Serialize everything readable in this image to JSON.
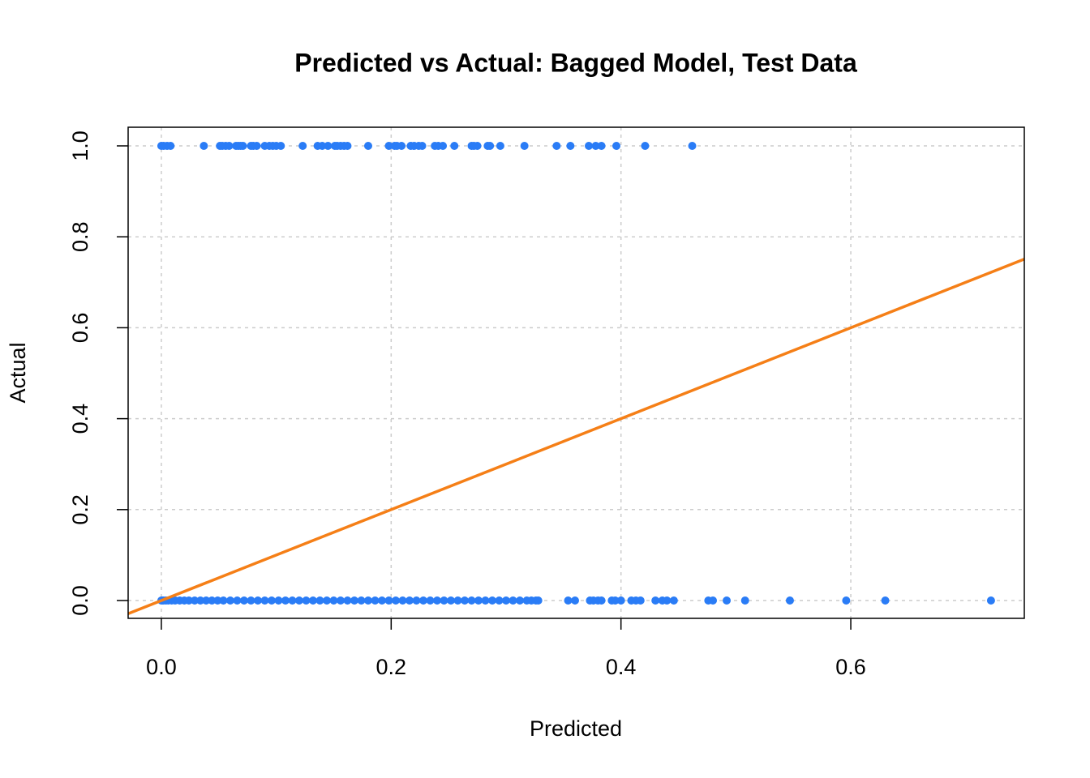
{
  "chart_data": {
    "type": "scatter",
    "title": "Predicted vs Actual: Bagged Model, Test Data",
    "x_label": "Predicted",
    "y_label": "Actual",
    "xlim": [
      -0.0289,
      0.751
    ],
    "ylim": [
      -0.0392,
      1.041
    ],
    "xticks": [
      {
        "value": 0,
        "label": "0.0"
      },
      0.2,
      0.4,
      0.6
    ],
    "yticks": [
      {
        "value": 0,
        "label": "0.0"
      },
      0.2,
      0.4,
      0.6,
      0.8,
      {
        "value": 1,
        "label": "1.0"
      }
    ],
    "grid": true,
    "reference_line": {
      "slope": 1,
      "intercept": 0,
      "color": "#f57f17"
    },
    "series": [
      {
        "color": "#2a7cf6",
        "x": [
          0.0,
          0.002,
          0.005,
          0.008,
          0.037,
          0.051,
          0.053,
          0.056,
          0.059,
          0.065,
          0.067,
          0.069,
          0.071,
          0.078,
          0.08,
          0.083,
          0.09,
          0.094,
          0.097,
          0.1,
          0.104,
          0.123,
          0.136,
          0.14,
          0.145,
          0.151,
          0.153,
          0.156,
          0.159,
          0.162,
          0.18,
          0.198,
          0.203,
          0.205,
          0.209,
          0.217,
          0.22,
          0.224,
          0.227,
          0.238,
          0.241,
          0.245,
          0.255,
          0.27,
          0.272,
          0.275,
          0.284,
          0.286,
          0.295,
          0.316,
          0.344,
          0.356,
          0.372,
          0.378,
          0.383,
          0.396,
          0.421,
          0.462
        ],
        "values": [
          1,
          1,
          1,
          1,
          1,
          1,
          1,
          1,
          1,
          1,
          1,
          1,
          1,
          1,
          1,
          1,
          1,
          1,
          1,
          1,
          1,
          1,
          1,
          1,
          1,
          1,
          1,
          1,
          1,
          1,
          1,
          1,
          1,
          1,
          1,
          1,
          1,
          1,
          1,
          1,
          1,
          1,
          1,
          1,
          1,
          1,
          1,
          1,
          1,
          1,
          1,
          1,
          1,
          1,
          1,
          1,
          1,
          1
        ]
      },
      {
        "color": "#2a7cf6",
        "x": [
          0,
          0.001,
          0.002,
          0.004,
          0.006,
          0.009,
          0.012,
          0.016,
          0.02,
          0.024,
          0.029,
          0.034,
          0.039,
          0.044,
          0.049,
          0.054,
          0.06,
          0.066,
          0.072,
          0.078,
          0.084,
          0.09,
          0.096,
          0.102,
          0.108,
          0.114,
          0.12,
          0.126,
          0.132,
          0.138,
          0.144,
          0.15,
          0.156,
          0.162,
          0.168,
          0.174,
          0.18,
          0.186,
          0.192,
          0.198,
          0.204,
          0.21,
          0.216,
          0.222,
          0.228,
          0.234,
          0.24,
          0.246,
          0.252,
          0.258,
          0.264,
          0.27,
          0.276,
          0.282,
          0.288,
          0.294,
          0.3,
          0.306,
          0.312,
          0.318,
          0.322,
          0.326,
          0.328,
          0.354,
          0.36,
          0.373,
          0.376,
          0.38,
          0.383,
          0.392,
          0.395,
          0.4,
          0.409,
          0.413,
          0.417,
          0.43,
          0.436,
          0.44,
          0.446,
          0.476,
          0.48,
          0.492,
          0.508,
          0.547,
          0.596,
          0.63,
          0.722
        ],
        "values": [
          0,
          0,
          0,
          0,
          0,
          0,
          0,
          0,
          0,
          0,
          0,
          0,
          0,
          0,
          0,
          0,
          0,
          0,
          0,
          0,
          0,
          0,
          0,
          0,
          0,
          0,
          0,
          0,
          0,
          0,
          0,
          0,
          0,
          0,
          0,
          0,
          0,
          0,
          0,
          0,
          0,
          0,
          0,
          0,
          0,
          0,
          0,
          0,
          0,
          0,
          0,
          0,
          0,
          0,
          0,
          0,
          0,
          0,
          0,
          0,
          0,
          0,
          0,
          0,
          0,
          0,
          0,
          0,
          0,
          0,
          0,
          0,
          0,
          0,
          0,
          0,
          0,
          0,
          0,
          0,
          0,
          0,
          0,
          0,
          0,
          0,
          0
        ]
      }
    ]
  }
}
